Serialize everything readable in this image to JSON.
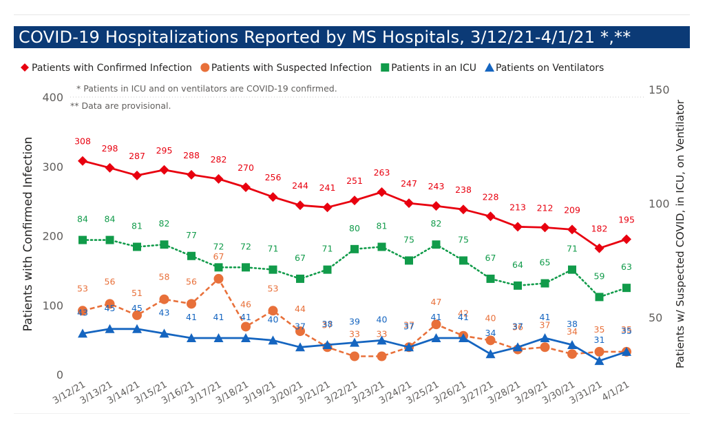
{
  "title": "COVID-19 Hospitalizations Reported by MS Hospitals, 3/12/21-4/1/21 *,**",
  "notes": [
    "* Patients in ICU and on ventilators are COVID-19 confirmed.",
    "** Data are provisional."
  ],
  "chart_data": {
    "type": "line",
    "categories": [
      "3/12/21",
      "3/13/21",
      "3/14/21",
      "3/15/21",
      "3/16/21",
      "3/17/21",
      "3/18/21",
      "3/19/21",
      "3/20/21",
      "3/21/21",
      "3/22/21",
      "3/23/21",
      "3/24/21",
      "3/25/21",
      "3/26/21",
      "3/27/21",
      "3/28/21",
      "3/29/21",
      "3/30/21",
      "3/31/21",
      "4/1/21"
    ],
    "ylabel": "Patients with Confirmed Infection",
    "y2label": "Patients w/ Suspected COVID, in ICU, on Ventilator",
    "ylim": [
      0,
      400
    ],
    "y2lim": [
      25,
      150
    ],
    "yticks": [
      0,
      100,
      200,
      300,
      400
    ],
    "y2ticks": [
      50,
      100,
      150
    ],
    "grid": false,
    "legend_position": "top-left",
    "series": [
      {
        "name": "Patients with Confirmed Infection",
        "axis": "left",
        "color": "#e8000f",
        "marker": "diamond",
        "style": "solid",
        "values": [
          308,
          298,
          287,
          295,
          288,
          282,
          270,
          256,
          244,
          241,
          251,
          263,
          247,
          243,
          238,
          228,
          213,
          212,
          209,
          182,
          195
        ]
      },
      {
        "name": "Patients with Suspected Infection",
        "axis": "right",
        "color": "#e8703a",
        "marker": "circle",
        "style": "dashed",
        "values": [
          53,
          56,
          51,
          58,
          56,
          67,
          46,
          53,
          44,
          37,
          33,
          33,
          37,
          47,
          42,
          40,
          36,
          37,
          34,
          35,
          35
        ]
      },
      {
        "name": "Patients in an ICU",
        "axis": "right",
        "color": "#119b4a",
        "marker": "square",
        "style": "dotted",
        "values": [
          84,
          84,
          81,
          82,
          77,
          72,
          72,
          71,
          67,
          71,
          80,
          81,
          75,
          82,
          75,
          67,
          64,
          65,
          71,
          59,
          63
        ]
      },
      {
        "name": "Patients on Ventilators",
        "axis": "right",
        "color": "#1565c0",
        "marker": "triangle",
        "style": "solid",
        "values": [
          43,
          45,
          45,
          43,
          41,
          41,
          41,
          40,
          37,
          38,
          39,
          40,
          37,
          41,
          41,
          34,
          37,
          41,
          38,
          31,
          35
        ]
      }
    ]
  }
}
